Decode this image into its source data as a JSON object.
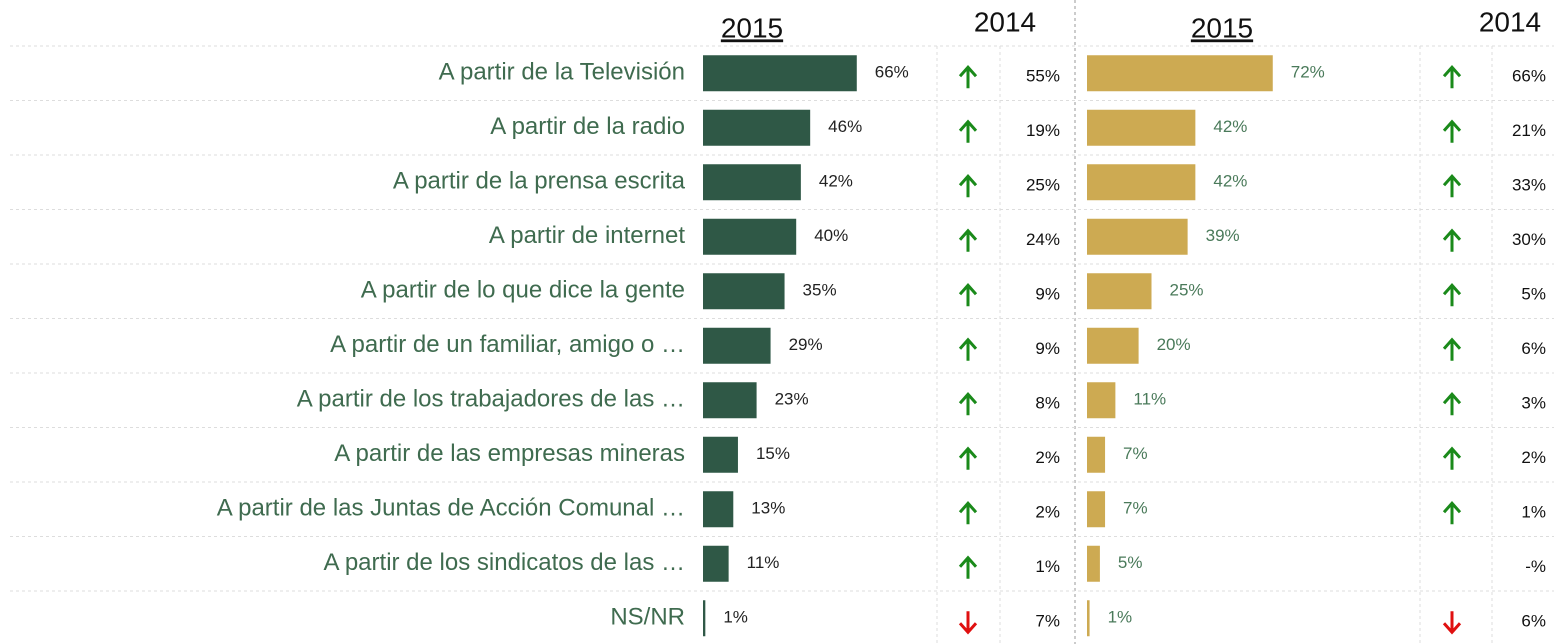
{
  "chart_data": {
    "type": "bar",
    "categories": [
      "A partir de la Televisión",
      "A partir de la radio",
      "A partir de la prensa escrita",
      "A partir de internet",
      "A partir de lo que dice la gente",
      "A partir de un familiar, amigo o …",
      "A partir de los trabajadores de las …",
      "A partir de las empresas mineras",
      "A partir de las Juntas de Acción Comunal …",
      "A partir de los sindicatos de las …",
      "NS/NR"
    ],
    "xlim": [
      0,
      100
    ],
    "panels": [
      {
        "color": "#2f5846",
        "label_color": "#222222",
        "current": {
          "name": "2015",
          "values": [
            66,
            46,
            42,
            40,
            35,
            29,
            23,
            15,
            13,
            11,
            1
          ],
          "value_labels": [
            "66%",
            "46%",
            "42%",
            "40%",
            "35%",
            "29%",
            "23%",
            "15%",
            "13%",
            "11%",
            "1%"
          ]
        },
        "previous": {
          "name": "2014",
          "values": [
            55,
            19,
            25,
            24,
            9,
            9,
            8,
            2,
            2,
            1,
            7
          ],
          "value_labels": [
            "55%",
            "19%",
            "25%",
            "24%",
            "9%",
            "9%",
            "8%",
            "2%",
            "2%",
            "1%",
            "7%"
          ]
        },
        "trend": [
          "up",
          "up",
          "up",
          "up",
          "up",
          "up",
          "up",
          "up",
          "up",
          "up",
          "down"
        ]
      },
      {
        "color": "#cdaa52",
        "label_color": "#4a7a5a",
        "current": {
          "name": "2015",
          "values": [
            72,
            42,
            42,
            39,
            25,
            20,
            11,
            7,
            7,
            5,
            1
          ],
          "value_labels": [
            "72%",
            "42%",
            "42%",
            "39%",
            "25%",
            "20%",
            "11%",
            "7%",
            "7%",
            "5%",
            "1%"
          ]
        },
        "previous": {
          "name": "2014",
          "values": [
            66,
            21,
            33,
            30,
            5,
            6,
            3,
            2,
            1,
            null,
            6
          ],
          "value_labels": [
            "66%",
            "21%",
            "33%",
            "30%",
            "5%",
            "6%",
            "3%",
            "2%",
            "1%",
            "-%",
            "6%"
          ]
        },
        "trend": [
          "up",
          "up",
          "up",
          "up",
          "up",
          "up",
          "up",
          "up",
          "up",
          null,
          "down"
        ]
      }
    ]
  }
}
